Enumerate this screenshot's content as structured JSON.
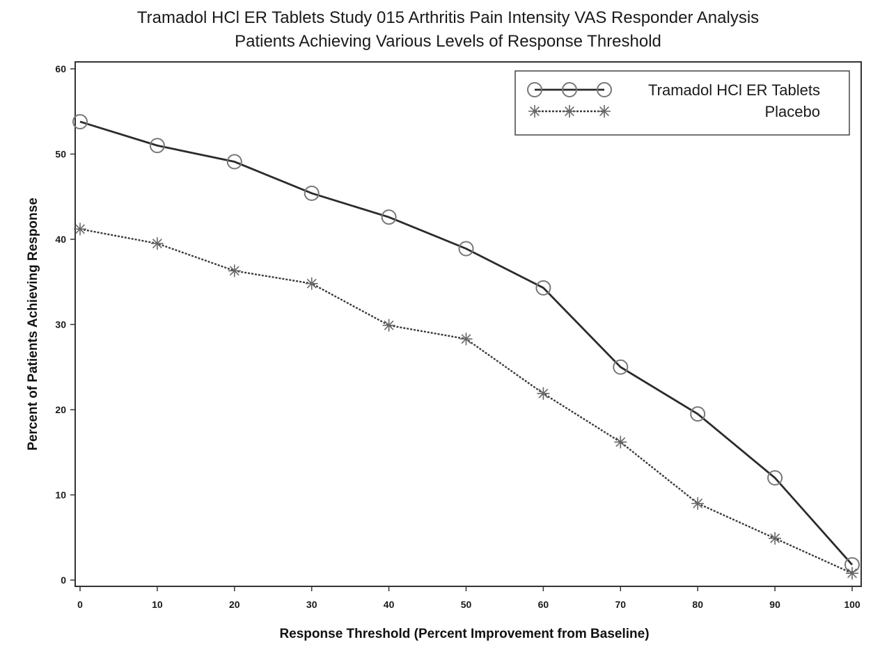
{
  "chart_data": {
    "type": "line",
    "title": "Tramadol HCl ER Tablets Study 015 Arthritis Pain Intensity VAS Responder Analysis",
    "subtitle": "Patients Achieving Various Levels of Response Threshold",
    "xlabel": "Response Threshold (Percent Improvement from Baseline)",
    "ylabel": "Percent of Patients Achieving Response",
    "x": [
      0,
      10,
      20,
      30,
      40,
      50,
      60,
      70,
      80,
      90,
      100
    ],
    "xlim": [
      0,
      100
    ],
    "ylim": [
      0,
      60
    ],
    "x_ticks": [
      0,
      10,
      20,
      30,
      40,
      50,
      60,
      70,
      80,
      90,
      100
    ],
    "y_ticks": [
      0,
      10,
      20,
      30,
      40,
      50,
      60
    ],
    "grid": false,
    "legend_position": "top-right",
    "series": [
      {
        "name": "Tramadol HCl ER Tablets",
        "values": [
          53.8,
          51.0,
          49.1,
          45.4,
          42.6,
          38.9,
          34.3,
          25.0,
          19.5,
          12.0,
          1.8
        ],
        "line_style": "solid",
        "marker": "circle",
        "color": "#2b2b2b"
      },
      {
        "name": "Placebo",
        "values": [
          41.2,
          39.5,
          36.3,
          34.8,
          29.9,
          28.3,
          21.9,
          16.2,
          9.0,
          4.9,
          0.8
        ],
        "line_style": "dotted",
        "marker": "star",
        "color": "#3a3a3a"
      }
    ]
  }
}
